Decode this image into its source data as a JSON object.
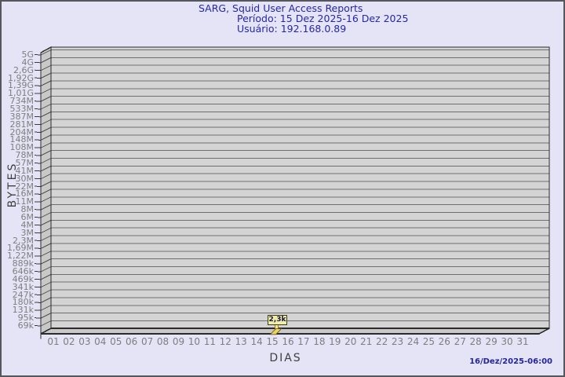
{
  "window": {
    "background": "#e4e4f6",
    "border_color": "#56565e"
  },
  "header": {
    "title": "SARG, Squid User Access Reports",
    "period": "Período: 15 Dez 2025-16 Dez 2025",
    "user": "Usuário: 192.168.0.89"
  },
  "footer": {
    "generated": "16/Dez/2025-06:00"
  },
  "chart_data": {
    "type": "bar",
    "title": "SARG, Squid User Access Reports",
    "subtitle": "Período: 15 Dez 2025-16 Dez 2025",
    "user": "Usuário: 192.168.0.89",
    "xlabel": "DIAS",
    "ylabel": "BYTES",
    "y_scale": "log",
    "grid": "horizontal",
    "y_ticks": [
      "5G",
      "4G",
      "2,6G",
      "1,92G",
      "1,39G",
      "1,01G",
      "734M",
      "533M",
      "387M",
      "281M",
      "204M",
      "148M",
      "108M",
      "78M",
      "57M",
      "41M",
      "30M",
      "22M",
      "16M",
      "11M",
      "8M",
      "6M",
      "4M",
      "3M",
      "2,3M",
      "1,69M",
      "1,22M",
      "889k",
      "646k",
      "469k",
      "341k",
      "247k",
      "180k",
      "131k",
      "95k",
      "69k"
    ],
    "x_ticks": [
      "01",
      "02",
      "03",
      "04",
      "05",
      "06",
      "07",
      "08",
      "09",
      "10",
      "11",
      "12",
      "13",
      "14",
      "15",
      "16",
      "17",
      "18",
      "19",
      "20",
      "21",
      "22",
      "23",
      "24",
      "25",
      "26",
      "27",
      "28",
      "29",
      "30",
      "31"
    ],
    "bars": [
      {
        "day": "15",
        "value_bytes": 2300,
        "label": "2,3k"
      }
    ],
    "colors": {
      "panel": "#d4d4d4",
      "wall": "#c8c8c8",
      "gridline": "#6f6f6f",
      "frame": "#2b2b2b",
      "bar_fill": "#eed45e",
      "bar_outline": "#6b5b1c",
      "tooltip_bg": "#f2eda6",
      "title_text": "#2626a8",
      "tick_text": "#7e7e7e",
      "axis_title_text": "#3f3f3f",
      "timestamp_text": "#24249c"
    }
  }
}
